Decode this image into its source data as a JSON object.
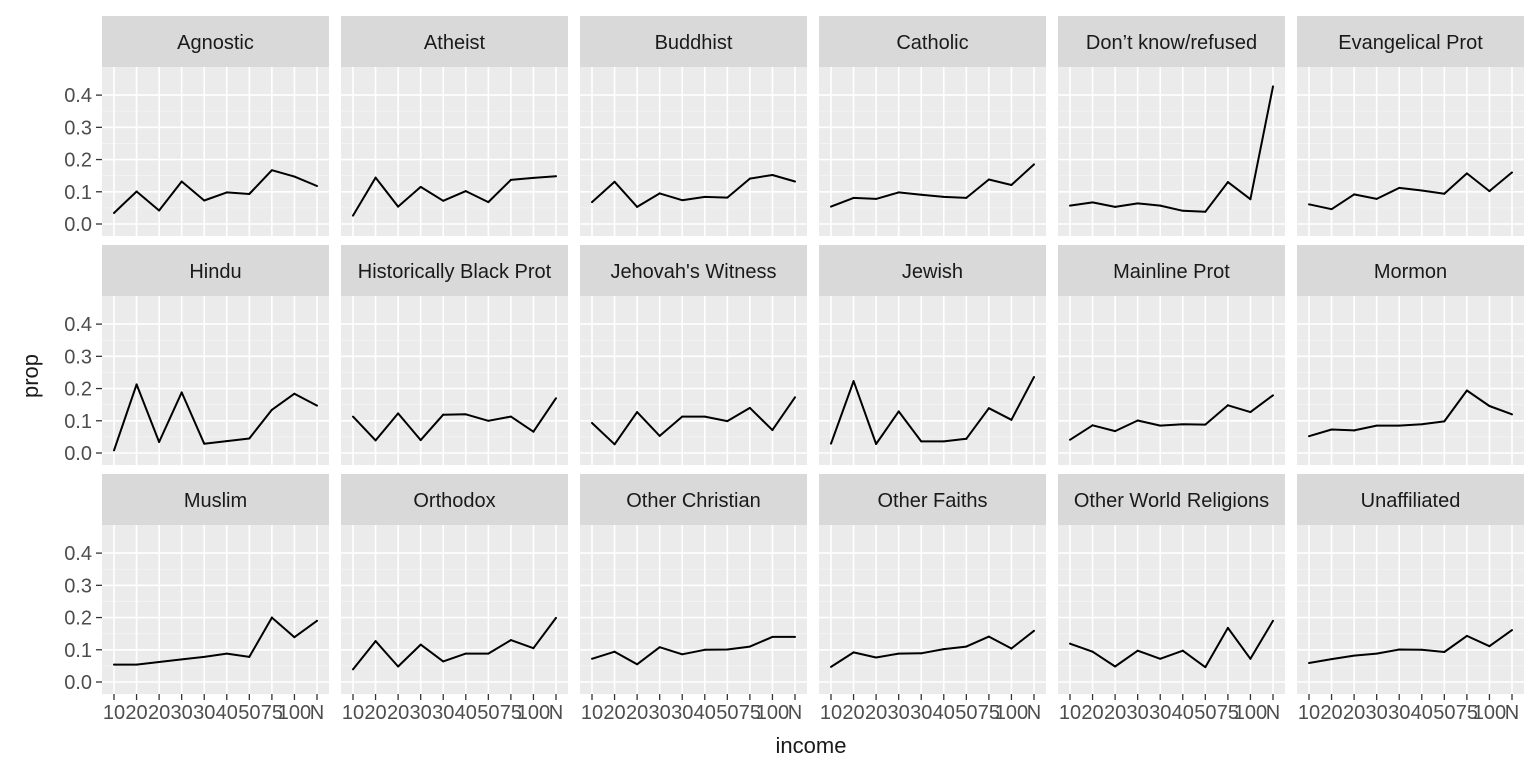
{
  "chart_data": {
    "type": "line",
    "xlabel": "income",
    "ylabel": "prop",
    "ylim": [
      0,
      0.45
    ],
    "yticks": [
      0.0,
      0.1,
      0.2,
      0.3,
      0.4
    ],
    "ytick_labels": [
      "0.0",
      "0.1",
      "0.2",
      "0.3",
      "0.4"
    ],
    "categories": [
      "10",
      "20",
      "20",
      "30",
      "30",
      "40",
      "50",
      "75",
      "100",
      "N"
    ],
    "grid": true,
    "colors": {
      "panel_bg": "#ebebeb",
      "strip_bg": "#d9d9d9",
      "grid_major": "#ffffff",
      "line": "#000000",
      "text": "#4d4d4d",
      "title": "#1a1a1a"
    },
    "facets": [
      {
        "name": "Agnostic",
        "values": [
          0.034,
          0.101,
          0.042,
          0.132,
          0.073,
          0.098,
          0.093,
          0.167,
          0.147,
          0.118
        ]
      },
      {
        "name": "Atheist",
        "values": [
          0.026,
          0.144,
          0.054,
          0.115,
          0.072,
          0.102,
          0.068,
          0.137,
          0.143,
          0.148
        ]
      },
      {
        "name": "Buddhist",
        "values": [
          0.068,
          0.131,
          0.053,
          0.095,
          0.074,
          0.084,
          0.082,
          0.141,
          0.152,
          0.132
        ]
      },
      {
        "name": "Catholic",
        "values": [
          0.054,
          0.081,
          0.078,
          0.098,
          0.091,
          0.084,
          0.081,
          0.138,
          0.121,
          0.185
        ]
      },
      {
        "name": "Don’t know/refused",
        "values": [
          0.057,
          0.067,
          0.053,
          0.064,
          0.057,
          0.041,
          0.038,
          0.13,
          0.077,
          0.427
        ]
      },
      {
        "name": "Evangelical Prot",
        "values": [
          0.061,
          0.046,
          0.092,
          0.078,
          0.112,
          0.104,
          0.094,
          0.157,
          0.102,
          0.16
        ]
      },
      {
        "name": "Hindu",
        "values": [
          0.008,
          0.213,
          0.034,
          0.188,
          0.029,
          0.037,
          0.045,
          0.134,
          0.184,
          0.147
        ]
      },
      {
        "name": "Historically Black Prot",
        "values": [
          0.113,
          0.039,
          0.123,
          0.04,
          0.119,
          0.12,
          0.1,
          0.113,
          0.066,
          0.17
        ]
      },
      {
        "name": "Jehovah's Witness",
        "values": [
          0.093,
          0.027,
          0.127,
          0.053,
          0.113,
          0.113,
          0.099,
          0.14,
          0.071,
          0.173
        ]
      },
      {
        "name": "Jewish",
        "values": [
          0.029,
          0.223,
          0.028,
          0.129,
          0.036,
          0.036,
          0.044,
          0.139,
          0.103,
          0.236
        ]
      },
      {
        "name": "Mainline Prot",
        "values": [
          0.041,
          0.086,
          0.068,
          0.101,
          0.085,
          0.089,
          0.088,
          0.148,
          0.127,
          0.179
        ]
      },
      {
        "name": "Mormon",
        "values": [
          0.052,
          0.073,
          0.07,
          0.085,
          0.085,
          0.089,
          0.098,
          0.194,
          0.146,
          0.12
        ]
      },
      {
        "name": "Muslim",
        "values": [
          0.054,
          0.054,
          0.062,
          0.07,
          0.078,
          0.088,
          0.078,
          0.2,
          0.139,
          0.19
        ]
      },
      {
        "name": "Orthodox",
        "values": [
          0.039,
          0.127,
          0.048,
          0.116,
          0.064,
          0.088,
          0.088,
          0.13,
          0.105,
          0.199
        ]
      },
      {
        "name": "Other Christian",
        "values": [
          0.072,
          0.094,
          0.055,
          0.108,
          0.086,
          0.1,
          0.101,
          0.11,
          0.14,
          0.14
        ]
      },
      {
        "name": "Other Faiths",
        "values": [
          0.047,
          0.092,
          0.076,
          0.088,
          0.089,
          0.102,
          0.11,
          0.141,
          0.104,
          0.159
        ]
      },
      {
        "name": "Other World Religions",
        "values": [
          0.119,
          0.094,
          0.048,
          0.097,
          0.072,
          0.097,
          0.046,
          0.168,
          0.072,
          0.19
        ]
      },
      {
        "name": "Unaffiliated",
        "values": [
          0.059,
          0.071,
          0.082,
          0.088,
          0.101,
          0.1,
          0.093,
          0.143,
          0.111,
          0.161
        ]
      }
    ]
  }
}
